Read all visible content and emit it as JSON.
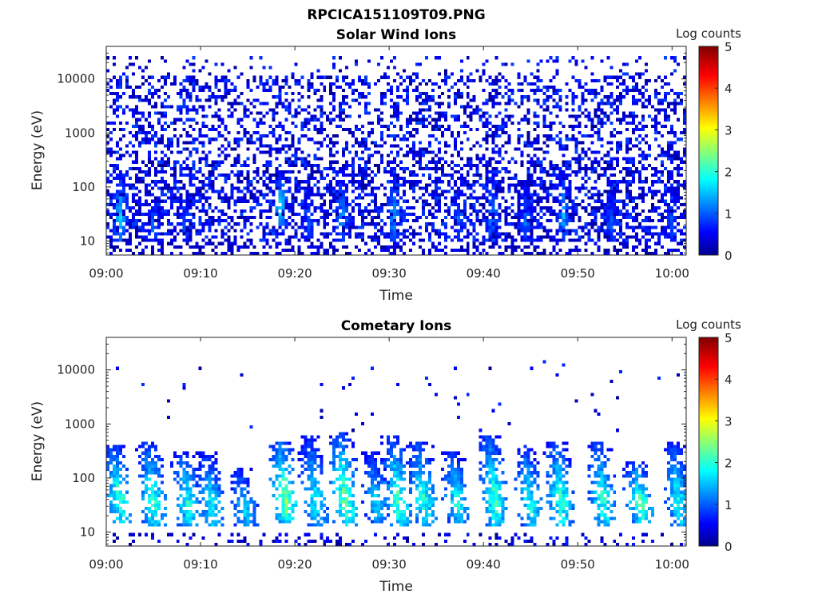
{
  "title": "RPCICA151109T09.PNG",
  "chart_data": [
    {
      "type": "heatmap",
      "title": "Solar Wind Ions",
      "xlabel": "Time",
      "ylabel": "Energy (eV)",
      "x_ticks": [
        "09:00",
        "09:10",
        "09:20",
        "09:30",
        "09:40",
        "09:50",
        "10:00"
      ],
      "y_ticks": [
        "10",
        "100",
        "1000",
        "10000"
      ],
      "y_scale": "log",
      "x_range_minutes": [
        0,
        61.5
      ],
      "y_range_eV": [
        5.5,
        40000
      ],
      "colorbar": {
        "label": "Log counts",
        "ticks": [
          "0",
          "1",
          "2",
          "3",
          "4",
          "5"
        ],
        "range": [
          0,
          5
        ],
        "colormap": "jet"
      },
      "pattern": {
        "background_noise": "dense scatter of log counts 0-1 between 10 eV and 20000 eV",
        "bursts": [
          {
            "minute": 1.5,
            "energy_range_eV": [
              10,
              200
            ],
            "peak_log_counts": 1.8
          },
          {
            "minute": 5.0,
            "energy_range_eV": [
              10,
              60
            ],
            "peak_log_counts": 1.3
          },
          {
            "minute": 8.5,
            "energy_range_eV": [
              10,
              80
            ],
            "peak_log_counts": 1.2
          },
          {
            "minute": 18.5,
            "energy_range_eV": [
              20,
              200
            ],
            "peak_log_counts": 2.0
          },
          {
            "minute": 21.5,
            "energy_range_eV": [
              10,
              100
            ],
            "peak_log_counts": 1.2
          },
          {
            "minute": 25.0,
            "energy_range_eV": [
              10,
              200
            ],
            "peak_log_counts": 1.6
          },
          {
            "minute": 30.5,
            "energy_range_eV": [
              10,
              200
            ],
            "peak_log_counts": 1.6
          },
          {
            "minute": 37.5,
            "energy_range_eV": [
              10,
              150
            ],
            "peak_log_counts": 1.3
          },
          {
            "minute": 41.0,
            "energy_range_eV": [
              10,
              200
            ],
            "peak_log_counts": 1.5
          },
          {
            "minute": 44.5,
            "energy_range_eV": [
              10,
              120
            ],
            "peak_log_counts": 1.3
          },
          {
            "minute": 48.5,
            "energy_range_eV": [
              10,
              200
            ],
            "peak_log_counts": 1.6
          },
          {
            "minute": 53.5,
            "energy_range_eV": [
              10,
              100
            ],
            "peak_log_counts": 1.2
          },
          {
            "minute": 60.0,
            "energy_range_eV": [
              10,
              100
            ],
            "peak_log_counts": 1.2
          }
        ]
      }
    },
    {
      "type": "heatmap",
      "title": "Cometary Ions",
      "xlabel": "Time",
      "ylabel": "Energy (eV)",
      "x_ticks": [
        "09:00",
        "09:10",
        "09:20",
        "09:30",
        "09:40",
        "09:50",
        "10:00"
      ],
      "y_ticks": [
        "10",
        "100",
        "1000",
        "10000"
      ],
      "y_scale": "log",
      "x_range_minutes": [
        0,
        61.5
      ],
      "y_range_eV": [
        5.5,
        40000
      ],
      "colorbar": {
        "label": "Log counts",
        "ticks": [
          "0",
          "1",
          "2",
          "3",
          "4",
          "5"
        ],
        "range": [
          0,
          5
        ],
        "colormap": "jet"
      },
      "pattern": {
        "background_noise": "sparse isolated points of log counts 0-1 above 1000 eV",
        "bursts": [
          {
            "minute": 1.2,
            "energy_range_eV": [
              15,
              400
            ],
            "peak_log_counts": 2.6
          },
          {
            "minute": 4.8,
            "energy_range_eV": [
              12,
              500
            ],
            "peak_log_counts": 2.5
          },
          {
            "minute": 8.5,
            "energy_range_eV": [
              12,
              300
            ],
            "peak_log_counts": 2.4
          },
          {
            "minute": 11.0,
            "energy_range_eV": [
              12,
              300
            ],
            "peak_log_counts": 2.2
          },
          {
            "minute": 14.5,
            "energy_range_eV": [
              12,
              150
            ],
            "peak_log_counts": 2.0
          },
          {
            "minute": 18.8,
            "energy_range_eV": [
              15,
              500
            ],
            "peak_log_counts": 3.0
          },
          {
            "minute": 22.0,
            "energy_range_eV": [
              12,
              600
            ],
            "peak_log_counts": 2.2
          },
          {
            "minute": 25.2,
            "energy_range_eV": [
              12,
              700
            ],
            "peak_log_counts": 2.8
          },
          {
            "minute": 28.5,
            "energy_range_eV": [
              15,
              300
            ],
            "peak_log_counts": 2.0
          },
          {
            "minute": 30.8,
            "energy_range_eV": [
              12,
              600
            ],
            "peak_log_counts": 2.6
          },
          {
            "minute": 33.5,
            "energy_range_eV": [
              12,
              500
            ],
            "peak_log_counts": 2.4
          },
          {
            "minute": 37.0,
            "energy_range_eV": [
              15,
              300
            ],
            "peak_log_counts": 2.3
          },
          {
            "minute": 41.0,
            "energy_range_eV": [
              12,
              600
            ],
            "peak_log_counts": 2.6
          },
          {
            "minute": 44.8,
            "energy_range_eV": [
              12,
              400
            ],
            "peak_log_counts": 2.3
          },
          {
            "minute": 48.0,
            "energy_range_eV": [
              12,
              500
            ],
            "peak_log_counts": 2.5
          },
          {
            "minute": 52.5,
            "energy_range_eV": [
              12,
              500
            ],
            "peak_log_counts": 2.4
          },
          {
            "minute": 56.5,
            "energy_range_eV": [
              15,
              200
            ],
            "peak_log_counts": 2.7
          },
          {
            "minute": 60.5,
            "energy_range_eV": [
              12,
              500
            ],
            "peak_log_counts": 2.2
          }
        ]
      }
    }
  ]
}
